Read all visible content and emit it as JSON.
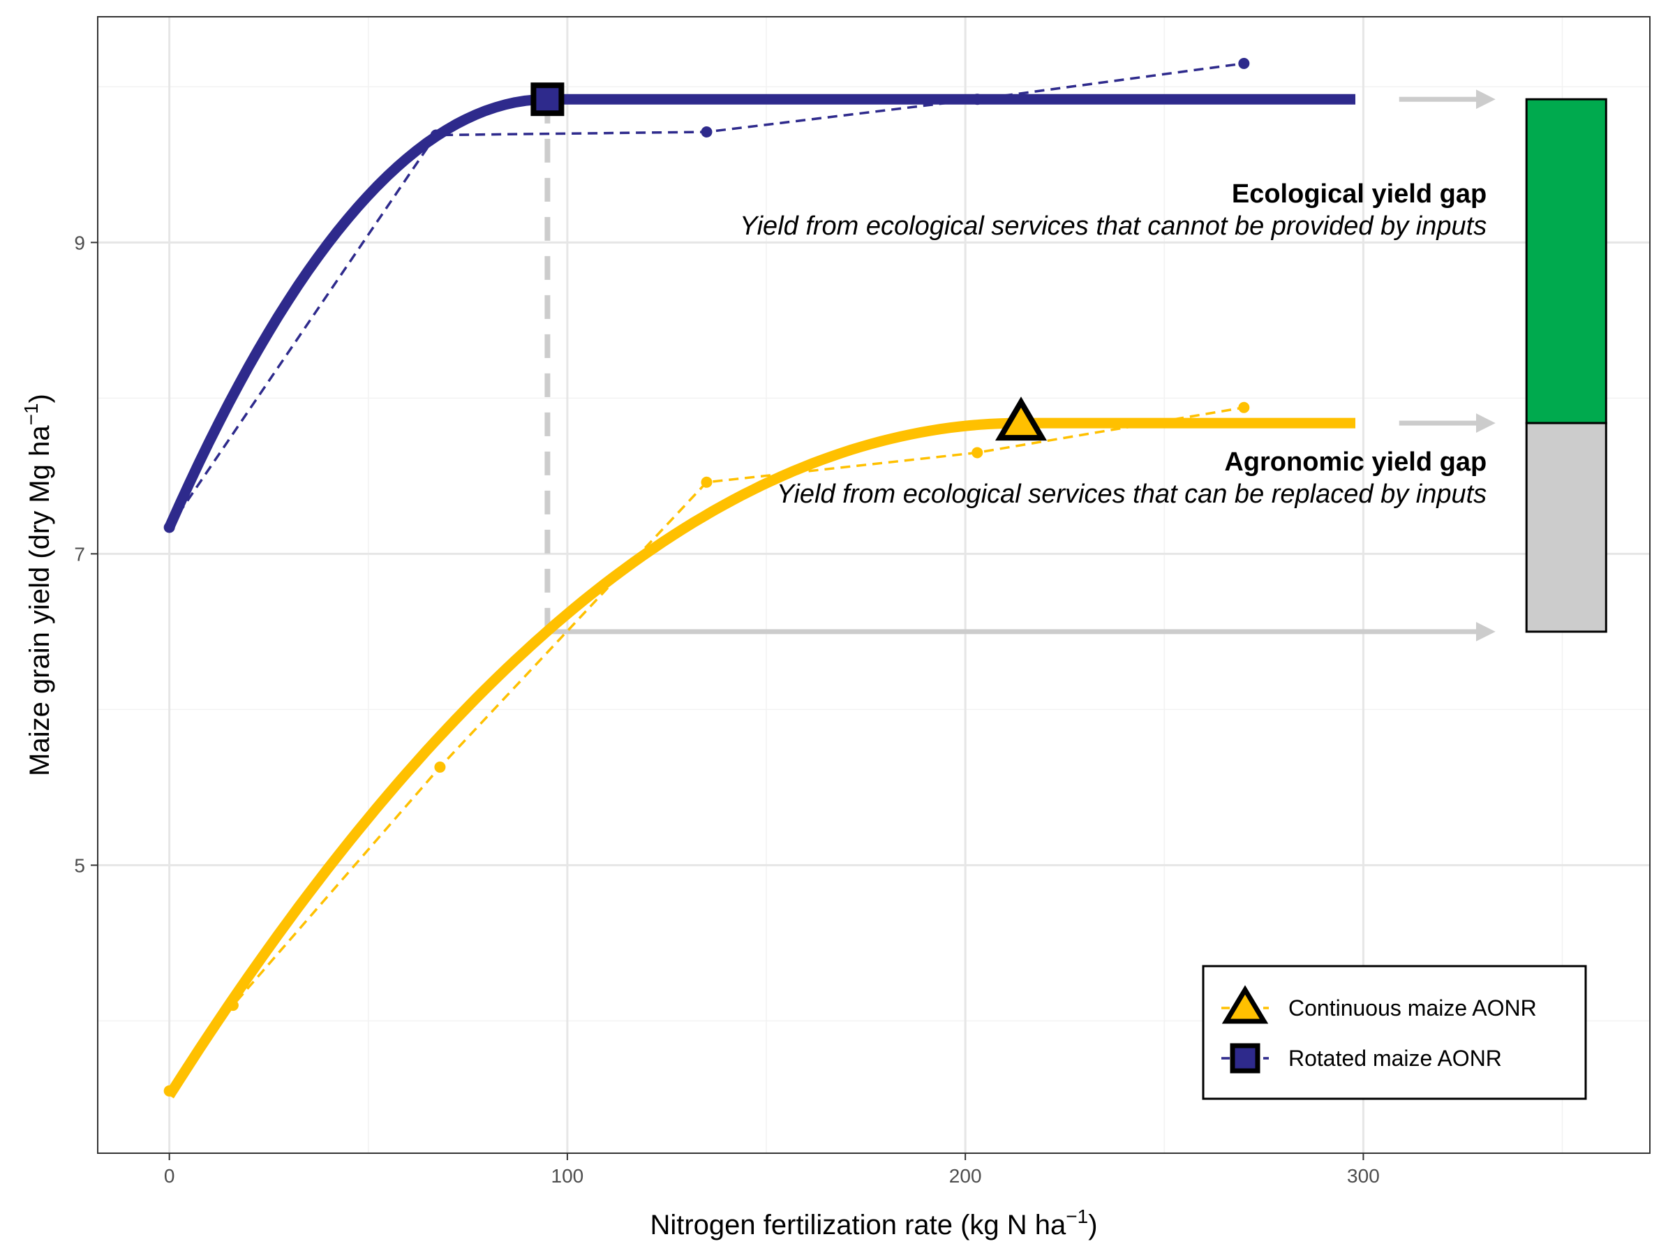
{
  "chart_data": {
    "type": "line",
    "xlabel": "Nitrogen fertilization rate (kg N ha",
    "xlabel_sup": "−1",
    "xlabel_close": ")",
    "ylabel": "Maize grain yield (dry Mg ha",
    "ylabel_sup": "−1",
    "ylabel_close": ")",
    "xlim": [
      -18,
      372
    ],
    "ylim": [
      3.15,
      10.45
    ],
    "x_ticks": [
      0,
      100,
      200,
      300
    ],
    "x_tick_labels": [
      "0",
      "100",
      "200",
      "300"
    ],
    "x_minor_grid": [
      50,
      150,
      250,
      350
    ],
    "y_ticks": [
      5,
      7,
      9
    ],
    "y_tick_labels": [
      "5",
      "7",
      "9"
    ],
    "y_minor_grid": [
      4,
      6,
      8,
      10
    ],
    "grid": true,
    "legend_position": "bottom-right",
    "series": [
      {
        "name": "Rotated maize AONR",
        "color": "#2E2A8C",
        "observed": {
          "x": [
            0,
            67,
            135,
            203,
            270
          ],
          "y": [
            7.17,
            9.69,
            9.71,
            9.92,
            10.15
          ]
        },
        "fit": {
          "intercept": 7.17,
          "plateau": 9.92,
          "aonr": 95,
          "x_end": 298
        },
        "aonr_point": {
          "x": 95,
          "y": 9.92
        },
        "marker": "square"
      },
      {
        "name": "Continuous maize AONR",
        "color": "#FFC000",
        "observed": {
          "x": [
            0,
            16,
            68,
            135,
            203,
            270
          ],
          "y": [
            3.55,
            4.1,
            5.63,
            7.46,
            7.65,
            7.94
          ]
        },
        "fit": {
          "intercept": 3.52,
          "plateau": 7.84,
          "aonr": 214,
          "x_end": 298
        },
        "aonr_point": {
          "x": 214,
          "y": 7.84
        },
        "marker": "triangle"
      }
    ],
    "reference_line": {
      "x": 95,
      "y_from": 6.5,
      "y_to": 9.92,
      "color": "#CCCCCC"
    },
    "arrows": [
      {
        "y": 9.92,
        "x_from": 309,
        "x_to": 331
      },
      {
        "y": 7.84,
        "x_from": 309,
        "x_to": 331
      },
      {
        "y": 6.5,
        "x_from": 95,
        "x_to": 331
      }
    ],
    "gap_bar": {
      "x_from": 341,
      "x_to": 361,
      "segments": [
        {
          "from": 7.84,
          "to": 9.92,
          "color": "#00AA4E",
          "label": "Ecological yield gap"
        },
        {
          "from": 6.5,
          "to": 7.84,
          "color": "#CCCCCC",
          "label": "Agronomic yield gap"
        }
      ]
    },
    "annotations": [
      {
        "title": "Ecological yield gap",
        "text": "Yield from ecological services that cannot be provided by inputs",
        "x": 331,
        "y": 9.05
      },
      {
        "title": "Agronomic yield gap",
        "text": "Yield from ecological services that can be replaced by inputs",
        "x": 331,
        "y": 7.33
      }
    ]
  },
  "legend": {
    "items": [
      {
        "label": "Continuous maize AONR",
        "color": "#FFC000",
        "marker": "triangle"
      },
      {
        "label": "Rotated maize AONR",
        "color": "#2E2A8C",
        "marker": "square"
      }
    ]
  }
}
